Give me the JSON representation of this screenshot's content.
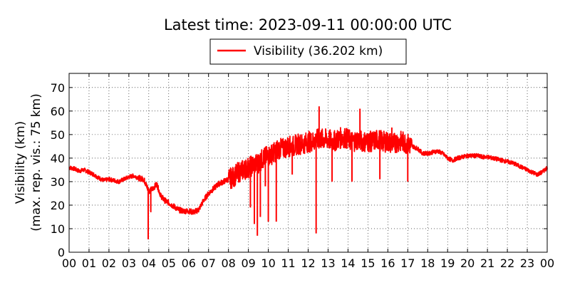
{
  "chart_data": {
    "type": "line",
    "title": "Latest time: 2023-09-11 00:00:00 UTC",
    "ylabel_line1": "Visibility (km)",
    "ylabel_line2": "(max. rep. vis.: 75 km)",
    "xlabel": "",
    "legend": {
      "position": "top-center",
      "label": "Visibility (36.202 km)"
    },
    "grid": true,
    "ylim": [
      0,
      76
    ],
    "xlim": [
      0,
      24
    ],
    "x_tick_labels": [
      "00",
      "01",
      "02",
      "03",
      "04",
      "05",
      "06",
      "07",
      "08",
      "09",
      "10",
      "11",
      "12",
      "13",
      "14",
      "15",
      "16",
      "17",
      "18",
      "19",
      "20",
      "21",
      "22",
      "23",
      "00"
    ],
    "y_ticks": [
      0,
      10,
      20,
      30,
      40,
      50,
      60,
      70
    ],
    "series": [
      {
        "name": "Visibility",
        "color": "#ff0000",
        "x": [
          0,
          0.25,
          0.5,
          0.75,
          1,
          1.25,
          1.5,
          1.75,
          2,
          2.25,
          2.5,
          2.75,
          3,
          3.25,
          3.5,
          3.75,
          3.9,
          4.0,
          4.2,
          4.4,
          4.6,
          4.8,
          5,
          5.25,
          5.5,
          5.75,
          6,
          6.25,
          6.5,
          6.75,
          7,
          7.25,
          7.5,
          7.75,
          8,
          8.25,
          8.5,
          8.75,
          9,
          9.25,
          9.5,
          9.75,
          10,
          10.25,
          10.5,
          10.75,
          11,
          11.25,
          11.5,
          11.75,
          12,
          12.25,
          12.5,
          12.75,
          13,
          13.25,
          13.5,
          13.75,
          14,
          14.25,
          14.5,
          14.75,
          15,
          15.25,
          15.5,
          15.75,
          16,
          16.25,
          16.5,
          16.75,
          17,
          17.25,
          17.5,
          17.75,
          18,
          18.25,
          18.5,
          18.75,
          19,
          19.25,
          19.5,
          19.75,
          20,
          20.25,
          20.5,
          20.75,
          21,
          21.25,
          21.5,
          21.75,
          22,
          22.25,
          22.5,
          22.75,
          23,
          23.25,
          23.5,
          23.75,
          24
        ],
        "values": [
          36,
          35.5,
          34.5,
          35,
          34,
          33,
          31.5,
          30.5,
          31,
          30.5,
          30,
          31,
          32,
          32.5,
          31.5,
          31,
          28,
          26,
          27,
          29,
          24,
          22,
          21,
          19.5,
          18,
          17.5,
          17.5,
          17,
          18,
          22,
          25,
          27,
          29,
          30,
          31,
          32,
          34,
          35,
          36,
          37,
          38,
          40,
          41,
          42,
          44,
          44,
          45,
          45,
          46,
          46,
          47,
          47,
          48,
          48,
          48,
          47,
          48,
          49,
          48,
          47,
          48,
          47,
          47,
          47,
          48,
          47,
          47,
          46,
          47,
          47,
          46,
          45,
          44,
          42,
          42,
          42.5,
          43,
          42,
          40,
          39,
          40,
          40.5,
          41,
          41,
          41,
          40.5,
          40.5,
          40,
          39.5,
          39,
          38.5,
          38,
          37,
          36,
          35,
          34,
          33,
          34,
          36
        ]
      }
    ],
    "spikes": [
      {
        "x": 3.97,
        "y": 5.5
      },
      {
        "x": 4.1,
        "y": 17
      },
      {
        "x": 9.1,
        "y": 19
      },
      {
        "x": 9.3,
        "y": 12
      },
      {
        "x": 9.45,
        "y": 7
      },
      {
        "x": 9.6,
        "y": 15
      },
      {
        "x": 9.85,
        "y": 28
      },
      {
        "x": 10.0,
        "y": 13
      },
      {
        "x": 10.4,
        "y": 13
      },
      {
        "x": 11.2,
        "y": 33
      },
      {
        "x": 12.4,
        "y": 8
      },
      {
        "x": 12.55,
        "y": 62
      },
      {
        "x": 13.2,
        "y": 30
      },
      {
        "x": 14.2,
        "y": 30
      },
      {
        "x": 14.6,
        "y": 61
      },
      {
        "x": 15.6,
        "y": 31
      },
      {
        "x": 16.2,
        "y": 53
      },
      {
        "x": 17.0,
        "y": 30
      }
    ]
  }
}
